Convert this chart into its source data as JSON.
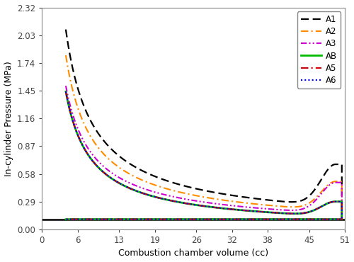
{
  "xlabel": "Combustion chamber volume (cc)",
  "ylabel": "In-cylinder Pressure (MPa)",
  "xlim": [
    0,
    51
  ],
  "ylim": [
    0.0,
    2.32
  ],
  "xticks": [
    0,
    6,
    13,
    19,
    26,
    32,
    38,
    45,
    51
  ],
  "yticks": [
    0.0,
    0.29,
    0.58,
    0.87,
    1.16,
    1.45,
    1.74,
    2.03,
    2.32
  ],
  "bottom_line_y": 0.105,
  "series": [
    {
      "label": "A1",
      "color": "#000000",
      "ls": "dashed",
      "lw": 1.6,
      "peak_vol": 4.0,
      "peak_p": 2.09,
      "end_p": 0.68,
      "min_p": 0.245,
      "bdc_vol": 49.5,
      "end_vol": 50.5
    },
    {
      "label": "A2",
      "color": "#FF8C00",
      "ls": "dashdot",
      "lw": 1.5,
      "peak_vol": 4.0,
      "peak_p": 1.82,
      "end_p": 0.5,
      "min_p": 0.2,
      "bdc_vol": 49.5,
      "end_vol": 50.5
    },
    {
      "label": "A3",
      "color": "#CC00CC",
      "ls": "dashdotdotted",
      "lw": 1.5,
      "peak_vol": 4.0,
      "peak_p": 1.5,
      "end_p": 0.49,
      "min_p": 0.17,
      "bdc_vol": 49.5,
      "end_vol": 50.5
    },
    {
      "label": "AB",
      "color": "#00BB00",
      "ls": "solid",
      "lw": 2.0,
      "peak_vol": 4.0,
      "peak_p": 1.44,
      "end_p": 0.29,
      "min_p": 0.14,
      "bdc_vol": 49.5,
      "end_vol": 50.5
    },
    {
      "label": "A5",
      "color": "#CC0000",
      "ls": "dashdot",
      "lw": 1.5,
      "peak_vol": 4.0,
      "peak_p": 1.44,
      "end_p": 0.29,
      "min_p": 0.14,
      "bdc_vol": 49.5,
      "end_vol": 50.5
    },
    {
      "label": "A6",
      "color": "#0000EE",
      "ls": "dotted",
      "lw": 1.5,
      "peak_vol": 4.0,
      "peak_p": 1.44,
      "end_p": 0.29,
      "min_p": 0.14,
      "bdc_vol": 49.5,
      "end_vol": 50.5
    }
  ]
}
